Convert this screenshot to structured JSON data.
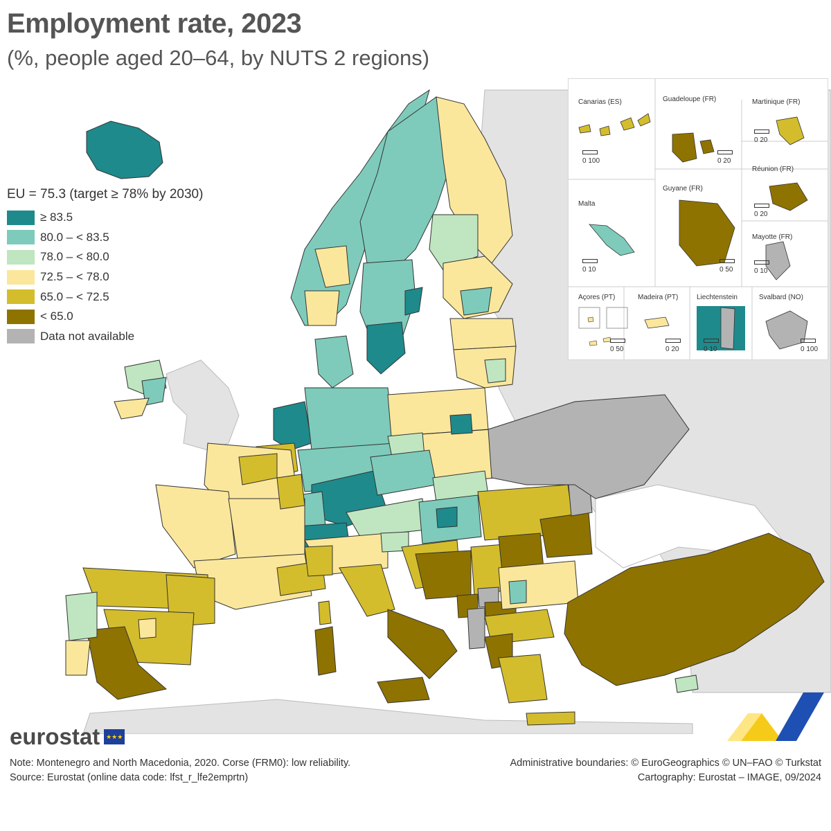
{
  "header": {
    "title": "Employment rate, 2023",
    "subtitle": "(%, people aged 20–64, by NUTS 2 regions)"
  },
  "legend": {
    "heading": "EU = 75.3 (target ≥ 78% by 2030)",
    "classes": [
      {
        "label": "≥ 83.5",
        "color": "#1e8a8c"
      },
      {
        "label": "80.0 – < 83.5",
        "color": "#7ecbbb"
      },
      {
        "label": "78.0 – < 80.0",
        "color": "#bfe6c0"
      },
      {
        "label": "72.5 – < 78.0",
        "color": "#fbe79c"
      },
      {
        "label": "65.0 – < 72.5",
        "color": "#d4bd2c"
      },
      {
        "label": "< 65.0",
        "color": "#8f7300"
      },
      {
        "label": "Data not available",
        "color": "#b3b3b3"
      }
    ]
  },
  "insets": {
    "canarias": {
      "label": "Canarias (ES)",
      "scale": "0   100"
    },
    "guadeloupe": {
      "label": "Guadeloupe (FR)",
      "scale": "0  20"
    },
    "martinique": {
      "label": "Martinique (FR)",
      "scale": "0  20"
    },
    "reunion": {
      "label": "Réunion (FR)",
      "scale": "0  20"
    },
    "malta": {
      "label": "Malta",
      "scale": "0  10"
    },
    "guyane": {
      "label": "Guyane (FR)",
      "scale": "0  50"
    },
    "mayotte": {
      "label": "Mayotte (FR)",
      "scale": "0  10"
    },
    "acores": {
      "label": "Açores (PT)",
      "scale": "0  50"
    },
    "madeira": {
      "label": "Madeira (PT)",
      "scale": "0  20"
    },
    "liechtenstein": {
      "label": "Liechtenstein",
      "scale": "0  10"
    },
    "svalbard": {
      "label": "Svalbard (NO)",
      "scale": "0 100"
    }
  },
  "footer": {
    "logo_text": "eurostat",
    "note": "Note: Montenegro and North Macedonia, 2020. Corse (FRM0): low reliability.",
    "source": "Source: Eurostat (online data code: lfst_r_lfe2emprtn)",
    "boundaries": "Administrative boundaries: © EuroGeographics © UN–FAO © Turkstat",
    "cartography": "Cartography: Eurostat – IMAGE, 09/2024"
  },
  "colors": {
    "c1": "#1e8a8c",
    "c2": "#7ecbbb",
    "c3": "#bfe6c0",
    "c4": "#fbe79c",
    "c5": "#d4bd2c",
    "c6": "#8f7300",
    "na": "#b3b3b3",
    "non_eu": "#e3e3e3",
    "sea": "#ffffff",
    "border": "#333333"
  }
}
